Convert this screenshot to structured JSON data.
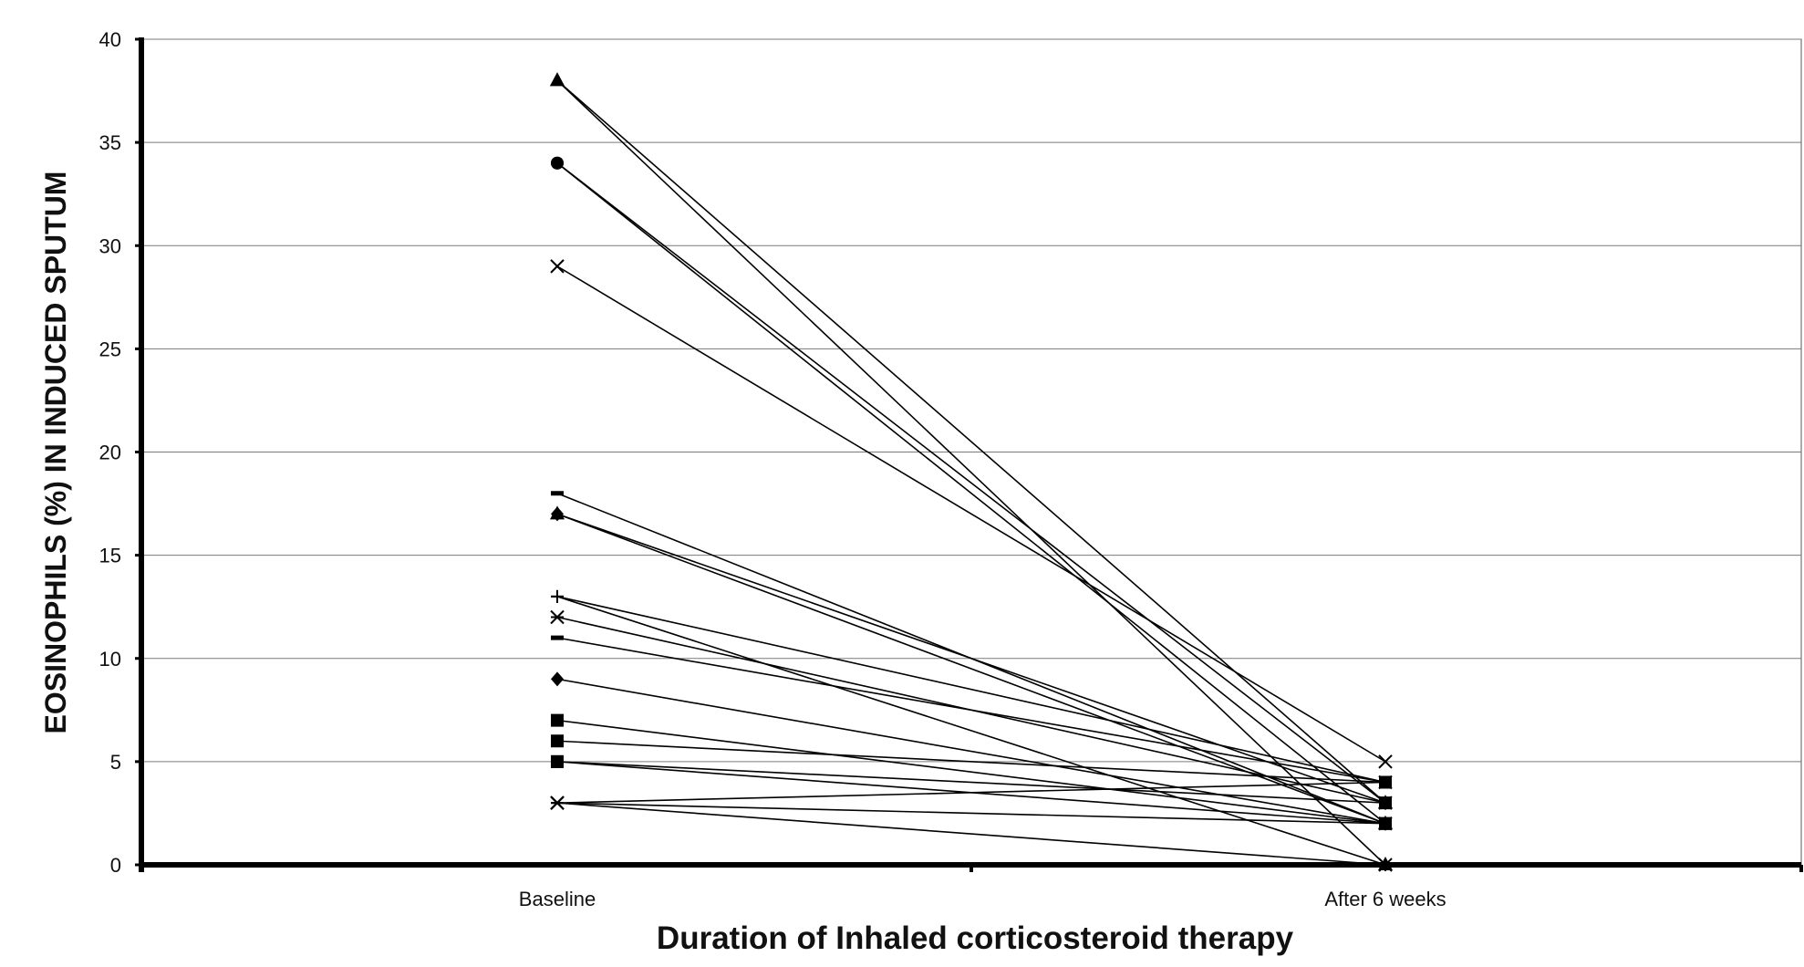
{
  "chart_data": {
    "type": "line",
    "title": "",
    "xlabel": "Duration of Inhaled corticosteroid therapy",
    "ylabel": "EOSINOPHILS (%) IN INDUCED SPUTUM",
    "categories": [
      "Baseline",
      "After 6 weeks"
    ],
    "ylim": [
      0,
      40
    ],
    "yticks": [
      0,
      5,
      10,
      15,
      20,
      25,
      30,
      35,
      40
    ],
    "grid": true,
    "legend": "none",
    "series": [
      {
        "values": [
          38,
          0
        ],
        "marker": "triangle"
      },
      {
        "values": [
          38,
          3
        ],
        "marker": "triangle"
      },
      {
        "values": [
          34,
          3
        ],
        "marker": "circle"
      },
      {
        "values": [
          34,
          2
        ],
        "marker": "circle"
      },
      {
        "values": [
          29,
          5
        ],
        "marker": "x"
      },
      {
        "values": [
          18,
          2
        ],
        "marker": "dash"
      },
      {
        "values": [
          17,
          2
        ],
        "marker": "triangle"
      },
      {
        "values": [
          17,
          3
        ],
        "marker": "diamond"
      },
      {
        "values": [
          13,
          4
        ],
        "marker": "plus"
      },
      {
        "values": [
          13,
          0
        ],
        "marker": "plus"
      },
      {
        "values": [
          12,
          3
        ],
        "marker": "asterisk"
      },
      {
        "values": [
          11,
          4
        ],
        "marker": "dash"
      },
      {
        "values": [
          9,
          2
        ],
        "marker": "diamond"
      },
      {
        "values": [
          7,
          2
        ],
        "marker": "square"
      },
      {
        "values": [
          6,
          4
        ],
        "marker": "square"
      },
      {
        "values": [
          5,
          3
        ],
        "marker": "square"
      },
      {
        "values": [
          5,
          2
        ],
        "marker": "square"
      },
      {
        "values": [
          3,
          4
        ],
        "marker": "asterisk"
      },
      {
        "values": [
          3,
          2
        ],
        "marker": "asterisk"
      },
      {
        "values": [
          3,
          0
        ],
        "marker": "asterisk"
      }
    ]
  }
}
